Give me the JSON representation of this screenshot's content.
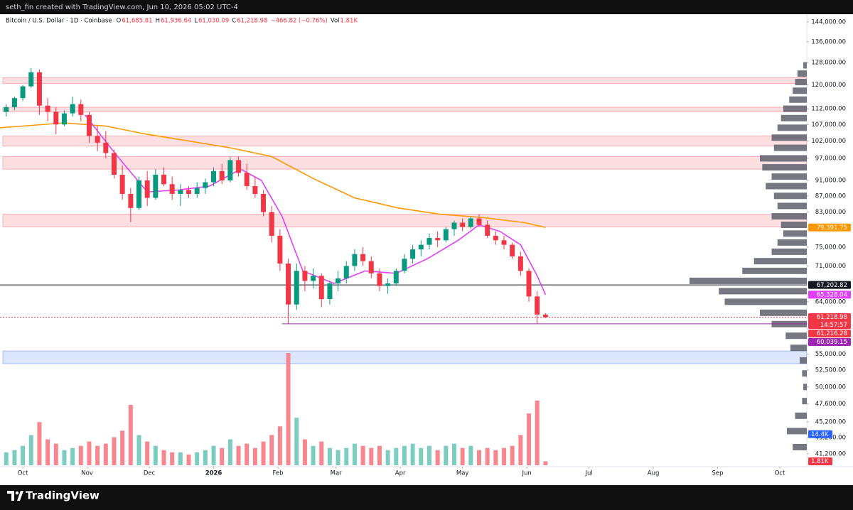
{
  "chart_data": {
    "type": "candlestick",
    "caption": "seth_fin created with TradingView.com, Jun 10, 2026 05:02 UTC-4",
    "symbol": "Bitcoin / U.S. Dollar · 1D · Coinbase",
    "ohlc_legend": [
      {
        "key": "O",
        "label": "61,685.81"
      },
      {
        "key": "H",
        "label": "61,936.64"
      },
      {
        "key": "L",
        "label": "61,030.09"
      },
      {
        "key": "C",
        "label": "61,218.98"
      },
      {
        "key": "",
        "label": "−466.82 (−0.76%)"
      },
      {
        "key": "Vol",
        "label": "1.81K"
      }
    ],
    "brand": "TradingView",
    "log_scale": true,
    "colors": {
      "up": "#089981",
      "down": "#f23645",
      "up_volume": "#7ccdc1",
      "down_volume": "#f7868e"
    },
    "xlim": [
      -11,
      378
    ],
    "xticks": [
      {
        "value": 0,
        "label": "Oct"
      },
      {
        "value": 31,
        "label": "Nov"
      },
      {
        "value": 61,
        "label": "Dec"
      },
      {
        "value": 92,
        "label": "2026"
      },
      {
        "value": 123,
        "label": "Feb"
      },
      {
        "value": 151,
        "label": "Mar"
      },
      {
        "value": 182,
        "label": "Apr"
      },
      {
        "value": 212,
        "label": "May"
      },
      {
        "value": 243,
        "label": "Jun"
      },
      {
        "value": 273,
        "label": "Jul"
      },
      {
        "value": 304,
        "label": "Aug"
      },
      {
        "value": 335,
        "label": "Sep"
      },
      {
        "value": 365,
        "label": "Oct"
      }
    ],
    "ylim": [
      39850,
      147300
    ],
    "yticks": [
      {
        "value": 144000,
        "label": "144,000.00"
      },
      {
        "value": 136000,
        "label": "136,000.00"
      },
      {
        "value": 128000,
        "label": "128,000.00"
      },
      {
        "value": 120000,
        "label": "120,000.00"
      },
      {
        "value": 112000,
        "label": "112,000.00"
      },
      {
        "value": 107000,
        "label": "107,000.00"
      },
      {
        "value": 102000,
        "label": "102,000.00"
      },
      {
        "value": 97000,
        "label": "97,000.00"
      },
      {
        "value": 91000,
        "label": "91,000.00"
      },
      {
        "value": 87000,
        "label": "87,000.00"
      },
      {
        "value": 83000,
        "label": "83,000.00"
      },
      {
        "value": 75000,
        "label": "75,000.00"
      },
      {
        "value": 71000,
        "label": "71,000.00"
      },
      {
        "value": 64000,
        "label": "64,000.00"
      },
      {
        "value": 55000,
        "label": "55,000.00"
      },
      {
        "value": 52500,
        "label": "52,500.00"
      },
      {
        "value": 50000,
        "label": "50,000.00"
      },
      {
        "value": 47600,
        "label": "47,600.00"
      },
      {
        "value": 45200,
        "label": "45,200.00"
      },
      {
        "value": 43200,
        "label": "43,200.00"
      },
      {
        "value": 41200,
        "label": "41,200.00"
      }
    ],
    "x": [
      -8,
      -4,
      0,
      4,
      8,
      12,
      16,
      20,
      24,
      28,
      32,
      36,
      40,
      44,
      48,
      52,
      56,
      60,
      64,
      68,
      72,
      76,
      80,
      84,
      88,
      92,
      96,
      100,
      104,
      108,
      112,
      116,
      120,
      124,
      128,
      132,
      136,
      140,
      144,
      148,
      152,
      156,
      160,
      164,
      168,
      172,
      176,
      180,
      184,
      188,
      192,
      196,
      200,
      204,
      208,
      212,
      216,
      220,
      224,
      228,
      232,
      236,
      240,
      244,
      248,
      252
    ],
    "open": [
      111000,
      112500,
      115500,
      119500,
      124500,
      113000,
      111000,
      107000,
      110500,
      113500,
      110000,
      103500,
      101500,
      98500,
      92500,
      87500,
      84000,
      91000,
      86500,
      92500,
      90000,
      87500,
      88500,
      87500,
      89000,
      90500,
      93500,
      91000,
      96500,
      93000,
      89500,
      87500,
      83000,
      77500,
      71500,
      63500,
      70000,
      68000,
      69000,
      64500,
      67500,
      68500,
      71000,
      73500,
      72000,
      69500,
      67000,
      67500,
      70000,
      72500,
      74500,
      75500,
      77000,
      76500,
      79000,
      80500,
      79500,
      81500,
      80000,
      77500,
      76500,
      75500,
      73000,
      70000,
      65000,
      61685.81
    ],
    "high": [
      113500,
      116000,
      120000,
      126000,
      125500,
      115500,
      112500,
      111500,
      116000,
      115000,
      111000,
      106500,
      105000,
      99500,
      95000,
      89000,
      92000,
      93500,
      94000,
      94500,
      92000,
      90000,
      89500,
      90500,
      91500,
      94500,
      95500,
      97500,
      97500,
      95500,
      92000,
      88500,
      84500,
      79000,
      72500,
      71500,
      71000,
      70500,
      69500,
      68000,
      70000,
      72000,
      74500,
      75000,
      73000,
      70500,
      68500,
      70500,
      73500,
      75500,
      76500,
      78000,
      78500,
      79500,
      81000,
      81500,
      82000,
      82500,
      81000,
      78500,
      77500,
      76000,
      74000,
      70500,
      66000,
      61936.64
    ],
    "low": [
      109500,
      111500,
      114500,
      119000,
      110000,
      108000,
      104000,
      106500,
      109500,
      108000,
      101500,
      99000,
      97000,
      91500,
      86000,
      80600,
      83500,
      84500,
      86000,
      89500,
      86000,
      84500,
      86500,
      86500,
      87500,
      89500,
      90000,
      90500,
      92000,
      88500,
      86500,
      82000,
      76000,
      70000,
      60000,
      62500,
      66000,
      66500,
      63000,
      63500,
      66000,
      67500,
      70000,
      71000,
      68500,
      66000,
      65500,
      67000,
      69500,
      71500,
      73000,
      74500,
      75000,
      76000,
      77500,
      78500,
      79000,
      79500,
      77000,
      75500,
      74500,
      72500,
      69000,
      64000,
      60000,
      61030.09
    ],
    "close": [
      112500,
      115500,
      119500,
      124500,
      113000,
      111000,
      107000,
      110500,
      113500,
      110000,
      103500,
      101500,
      98500,
      92500,
      87500,
      84000,
      91000,
      86500,
      92500,
      90000,
      87500,
      88500,
      87500,
      89000,
      90500,
      93500,
      91000,
      96500,
      93000,
      89500,
      87500,
      83000,
      77500,
      71500,
      63500,
      70000,
      68000,
      69000,
      64500,
      67500,
      68500,
      71000,
      73500,
      72000,
      69500,
      67000,
      67500,
      70000,
      72500,
      74500,
      75500,
      77000,
      76500,
      79000,
      80500,
      79500,
      81500,
      80000,
      77500,
      76500,
      75500,
      73000,
      70000,
      65000,
      61685.81,
      61218.98
    ],
    "volume": [
      6,
      7,
      9,
      14,
      20,
      12,
      10,
      7,
      8,
      9,
      11,
      9,
      10,
      13,
      16,
      28,
      14,
      11,
      9,
      7,
      6,
      6,
      5,
      6,
      7,
      9,
      8,
      12,
      9,
      10,
      8,
      11,
      14,
      18,
      52,
      22,
      12,
      9,
      11,
      8,
      7,
      8,
      10,
      9,
      8,
      9,
      7,
      8,
      9,
      10,
      8,
      9,
      7,
      9,
      10,
      8,
      9,
      7,
      8,
      7,
      8,
      9,
      14,
      24,
      30,
      1.81
    ],
    "volume_lim": [
      0,
      52
    ],
    "lines": [
      {
        "color": "#ff9800",
        "x": [
          -11,
          0,
          20,
          40,
          60,
          80,
          100,
          120,
          140,
          160,
          181,
          201,
          222,
          242,
          252
        ],
        "values": [
          106000,
          106500,
          107500,
          106500,
          104000,
          102000,
          100000,
          97500,
          91500,
          86500,
          84000,
          82500,
          81700,
          80500,
          79391.75
        ]
      },
      {
        "color": "#e040fb",
        "x": [
          30,
          45,
          60,
          75,
          90,
          105,
          115,
          125,
          135,
          150,
          165,
          180,
          195,
          210,
          220,
          230,
          240,
          248,
          252
        ],
        "values": [
          110000,
          98000,
          88000,
          88500,
          89500,
          94000,
          91000,
          82000,
          70000,
          67500,
          70000,
          69500,
          72500,
          76500,
          80000,
          78500,
          75500,
          69000,
          65328.04
        ]
      }
    ],
    "zones": [
      {
        "low": 120500,
        "high": 122500,
        "color": "#f23645"
      },
      {
        "low": 111000,
        "high": 112500,
        "color": "#f23645"
      },
      {
        "low": 100500,
        "high": 103500,
        "color": "#f23645"
      },
      {
        "low": 94000,
        "high": 97500,
        "color": "#f23645"
      },
      {
        "low": 79500,
        "high": 82500,
        "color": "#f23645"
      },
      {
        "low": 53500,
        "high": 55500,
        "color": "#2962ff"
      }
    ],
    "volume_profile": {
      "prices": [
        127000,
        124000,
        121000,
        118000,
        115000,
        112000,
        109000,
        106000,
        103000,
        100000,
        97000,
        94500,
        92000,
        89500,
        87000,
        84500,
        82000,
        80000,
        78000,
        76000,
        74000,
        72000,
        70000,
        68000,
        66000,
        64000,
        62000,
        60000,
        58000,
        56000,
        54000,
        52000,
        50000,
        48000,
        46000,
        44000,
        42000
      ],
      "values": [
        3,
        8,
        10,
        12,
        15,
        20,
        22,
        25,
        30,
        28,
        40,
        38,
        30,
        35,
        28,
        25,
        30,
        22,
        20,
        25,
        30,
        45,
        55,
        100,
        75,
        70,
        40,
        30,
        18,
        14,
        6,
        4,
        3,
        4,
        10,
        17,
        12
      ],
      "color": "#5d606b"
    },
    "price_labels": [
      {
        "value": 79391.75,
        "label": "79,391.75",
        "color": "#ff9800"
      },
      {
        "value": 67202.82,
        "label": "67,202.82",
        "color": "#131722",
        "line": "solid",
        "line_start": -11
      },
      {
        "value": 65328.04,
        "label": "65,328.04",
        "color": "#e040fb"
      },
      {
        "value": 61218.98,
        "label": "61,218.98",
        "countdown": "14:57:57",
        "color": "#f23645",
        "line": "dotted",
        "line_start": -11
      },
      {
        "value": 61216.28,
        "label": "61,216.28",
        "color": "#f23645"
      },
      {
        "value": 60039.15,
        "label": "60,039.15",
        "color": "#9c27b0",
        "line": "solid",
        "line_start": 125
      }
    ],
    "volume_labels": [
      {
        "value": 14.4,
        "label": "14.4K",
        "color": "#2962ff"
      },
      {
        "value": 1.81,
        "label": "1.81K",
        "color": "#f23645"
      }
    ]
  }
}
